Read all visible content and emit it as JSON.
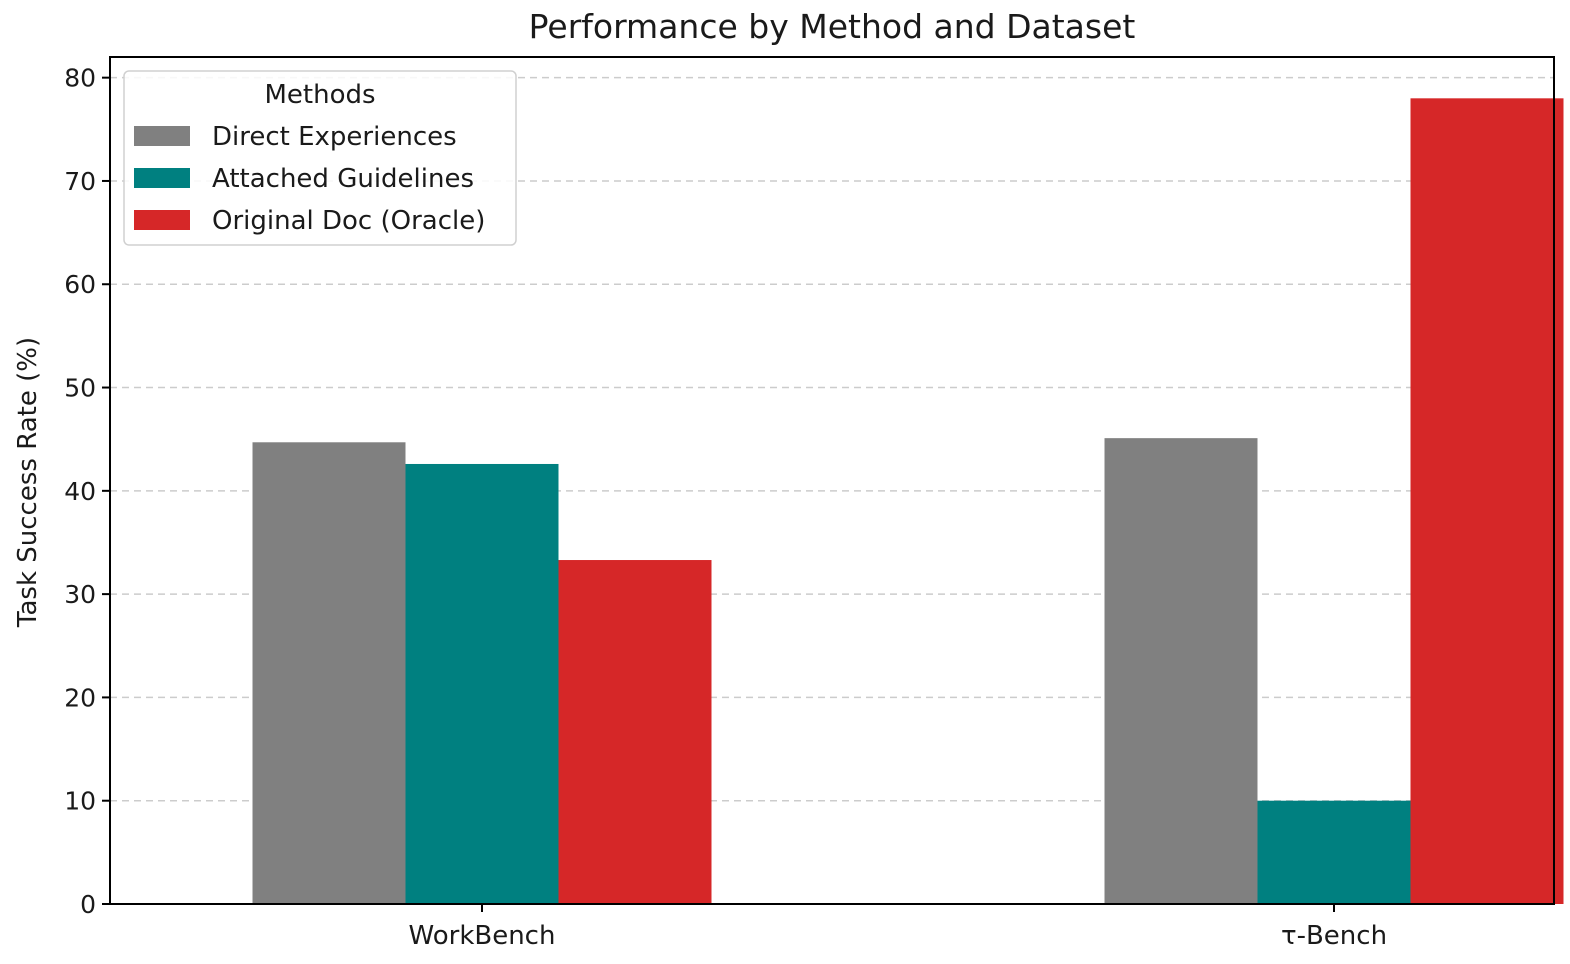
{
  "chart_data": {
    "type": "bar",
    "title": "Performance by Method and Dataset",
    "xlabel": "",
    "ylabel": "Task Success Rate (%)",
    "categories": [
      "WorkBench",
      "τ-Bench"
    ],
    "series": [
      {
        "name": "Direct Experiences",
        "color": "#808080",
        "values": [
          44.7,
          45.1
        ]
      },
      {
        "name": "Attached Guidelines",
        "color": "#008080",
        "values": [
          42.6,
          10.0
        ]
      },
      {
        "name": "Original Doc (Oracle)",
        "color": "#d62728",
        "values": [
          33.3,
          78.0
        ]
      }
    ],
    "ylim": [
      0,
      82
    ],
    "yticks": [
      0,
      10,
      20,
      30,
      40,
      50,
      60,
      70,
      80
    ],
    "grid": {
      "axis": "y",
      "style": "dashed"
    },
    "legend": {
      "title": "Methods",
      "placement": "top-left"
    }
  }
}
